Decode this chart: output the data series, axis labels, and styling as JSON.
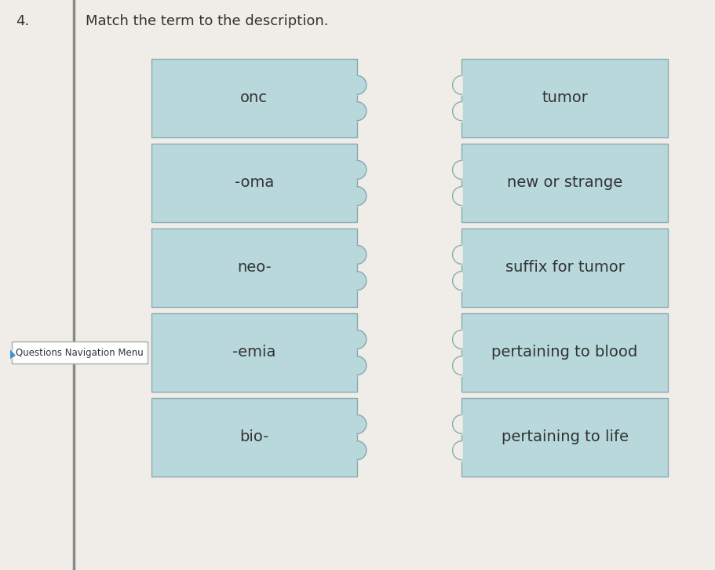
{
  "title": "Match the term to the description.",
  "background_color": "#f0ede8",
  "box_fill_color": "#b8d8dc",
  "box_edge_color": "#8aabaf",
  "left_terms": [
    "onc",
    "-oma",
    "neo-",
    "-emia",
    "bio-"
  ],
  "right_terms": [
    "tumor",
    "new or strange",
    "suffix for tumor",
    "pertaining to blood",
    "pertaining to life"
  ],
  "nav_menu_text": "Questions Navigation Menu",
  "text_color": "#333333",
  "font_size": 14,
  "title_font_size": 13,
  "num_bumps": 2
}
